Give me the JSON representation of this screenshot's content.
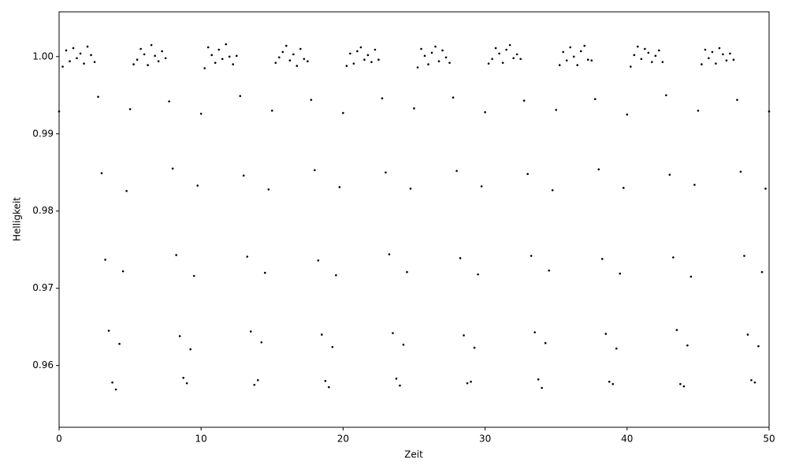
{
  "chart_data": {
    "type": "scatter",
    "xlabel": "Zeit",
    "ylabel": "Helligkeit",
    "color": "#000000",
    "xlim": [
      0,
      50
    ],
    "xticks": [
      0,
      10,
      20,
      30,
      40,
      50
    ],
    "ylim": [
      0.952,
      1.0058
    ],
    "yticks": [
      0.96,
      0.97,
      0.98,
      0.99,
      {
        "value": 1.0,
        "label": "1.00"
      }
    ],
    "x": [
      0,
      0.25,
      0.5,
      0.75,
      1,
      1.25,
      1.5,
      1.75,
      2,
      2.25,
      2.5,
      2.75,
      3,
      3.25,
      3.5,
      3.75,
      4,
      4.25,
      4.5,
      4.75,
      5,
      5.25,
      5.5,
      5.75,
      6,
      6.25,
      6.5,
      6.75,
      7,
      7.25,
      7.5,
      7.75,
      8,
      8.25,
      8.5,
      8.75,
      9,
      9.25,
      9.5,
      9.75,
      10,
      10.25,
      10.5,
      10.75,
      11,
      11.25,
      11.5,
      11.75,
      12,
      12.25,
      12.5,
      12.75,
      13,
      13.25,
      13.5,
      13.75,
      14,
      14.25,
      14.5,
      14.75,
      15,
      15.25,
      15.5,
      15.75,
      16,
      16.25,
      16.5,
      16.75,
      17,
      17.25,
      17.5,
      17.75,
      18,
      18.25,
      18.5,
      18.75,
      19,
      19.25,
      19.5,
      19.75,
      20,
      20.25,
      20.5,
      20.75,
      21,
      21.25,
      21.5,
      21.75,
      22,
      22.25,
      22.5,
      22.75,
      23,
      23.25,
      23.5,
      23.75,
      24,
      24.25,
      24.5,
      24.75,
      25,
      25.25,
      25.5,
      25.75,
      26,
      26.25,
      26.5,
      26.75,
      27,
      27.25,
      27.5,
      27.75,
      28,
      28.25,
      28.5,
      28.75,
      29,
      29.25,
      29.5,
      29.75,
      30,
      30.25,
      30.5,
      30.75,
      31,
      31.25,
      31.5,
      31.75,
      32,
      32.25,
      32.5,
      32.75,
      33,
      33.25,
      33.5,
      33.75,
      34,
      34.25,
      34.5,
      34.75,
      35,
      35.25,
      35.5,
      35.75,
      36,
      36.25,
      36.5,
      36.75,
      37,
      37.25,
      37.5,
      37.75,
      38,
      38.25,
      38.5,
      38.75,
      39,
      39.25,
      39.5,
      39.75,
      40,
      40.25,
      40.5,
      40.75,
      41,
      41.25,
      41.5,
      41.75,
      42,
      42.25,
      42.5,
      42.75,
      43,
      43.25,
      43.5,
      43.75,
      44,
      44.25,
      44.5,
      44.75,
      45,
      45.25,
      45.5,
      45.75,
      46,
      46.25,
      46.5,
      46.75,
      47,
      47.25,
      47.5,
      47.75,
      48,
      48.25,
      48.5,
      48.75,
      49,
      49.25,
      49.5,
      49.75,
      50
    ],
    "values": [
      0.9929,
      0.9987,
      1.0008,
      0.9994,
      1.0011,
      0.9998,
      1.0004,
      0.9991,
      1.0013,
      1.0002,
      0.9993,
      0.9948,
      0.9849,
      0.9737,
      0.9645,
      0.9578,
      0.9569,
      0.9628,
      0.9722,
      0.9826,
      0.9932,
      0.999,
      0.9996,
      1.001,
      1.0003,
      0.9989,
      1.0015,
      1.0001,
      0.9994,
      1.0007,
      0.9998,
      0.9942,
      0.9855,
      0.9743,
      0.9638,
      0.9584,
      0.9577,
      0.9621,
      0.9716,
      0.9833,
      0.9926,
      0.9985,
      1.0012,
      1.0002,
      0.9992,
      1.0009,
      0.9997,
      1.0016,
      1.0,
      0.999,
      1.0001,
      0.9949,
      0.9846,
      0.9741,
      0.9644,
      0.9575,
      0.9581,
      0.963,
      0.972,
      0.9828,
      0.993,
      0.9992,
      0.9999,
      1.0006,
      1.0014,
      0.9995,
      1.0003,
      0.9988,
      1.001,
      0.9997,
      0.9994,
      0.9944,
      0.9853,
      0.9736,
      0.964,
      0.958,
      0.9572,
      0.9624,
      0.9717,
      0.9831,
      0.9927,
      0.9988,
      1.0004,
      0.9991,
      1.0007,
      1.0012,
      0.9996,
      1.0002,
      0.9993,
      1.0009,
      0.9996,
      0.9946,
      0.985,
      0.9744,
      0.9642,
      0.9583,
      0.9574,
      0.9627,
      0.9721,
      0.9829,
      0.9933,
      0.9986,
      1.001,
      1.0001,
      0.999,
      1.0005,
      1.0013,
      0.9994,
      1.0008,
      0.9999,
      0.9992,
      0.9947,
      0.9852,
      0.9739,
      0.9639,
      0.9577,
      0.9579,
      0.9623,
      0.9718,
      0.9832,
      0.9928,
      0.9991,
      0.9997,
      1.0011,
      1.0004,
      0.9992,
      1.0009,
      1.0015,
      0.9998,
      1.0003,
      0.9997,
      0.9943,
      0.9848,
      0.9742,
      0.9643,
      0.9582,
      0.9571,
      0.9629,
      0.9723,
      0.9827,
      0.9931,
      0.9989,
      1.0006,
      0.9995,
      1.0012,
      1.0,
      0.9989,
      1.0007,
      1.0014,
      0.9996,
      0.9995,
      0.9945,
      0.9854,
      0.9738,
      0.9641,
      0.9579,
      0.9576,
      0.9622,
      0.9719,
      0.983,
      0.9925,
      0.9987,
      1.0002,
      1.0013,
      0.9997,
      1.001,
      1.0005,
      0.9993,
      1.0001,
      1.0008,
      0.9993,
      0.995,
      0.9847,
      0.974,
      0.9646,
      0.9576,
      0.9573,
      0.9626,
      0.9715,
      0.9834,
      0.993,
      0.999,
      1.0009,
      0.9998,
      1.0006,
      0.9991,
      1.0011,
      1.0003,
      0.9995,
      1.0004,
      0.9996,
      0.9944,
      0.9851,
      0.9742,
      0.964,
      0.9581,
      0.9578,
      0.9625,
      0.9721,
      0.9829,
      0.9929
    ]
  }
}
